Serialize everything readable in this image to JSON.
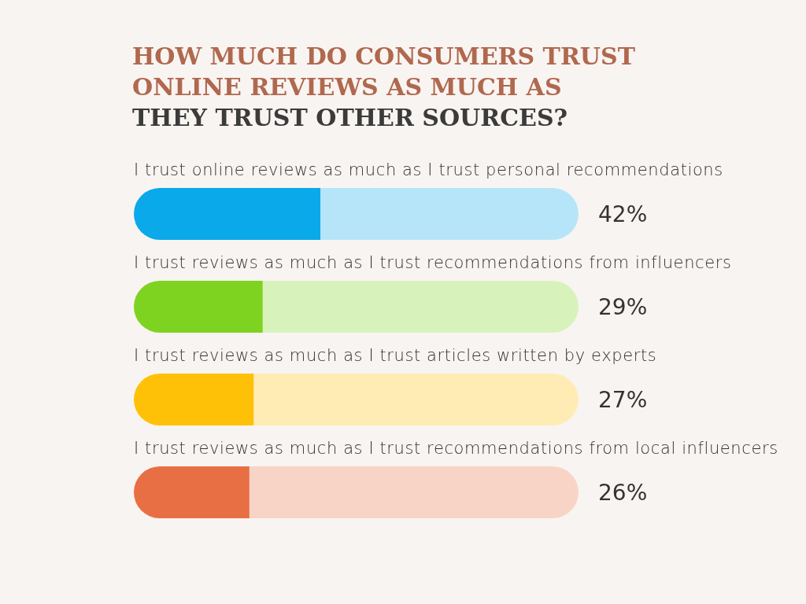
{
  "chart_data": {
    "type": "bar",
    "orientation": "horizontal",
    "stacked": true,
    "title": "HOW MUCH DO CONSUMERS TRUST ONLINE REVIEWS AS MUCH AS",
    "subtitle": "THEY TRUST OTHER SOURCES?",
    "categories": [
      "I trust online reviews as much as I trust personal recommendations",
      "I trust reviews as much as I trust recommendations from influencers",
      "I trust reviews as much as I trust articles written by experts",
      "I trust reviews as much as I trust recommendations from local influencers"
    ],
    "series": [
      {
        "values": [
          42,
          29,
          27,
          26
        ],
        "colors": [
          "#0aa9ea",
          "#7ed321",
          "#ffc107",
          "#e86f44"
        ],
        "value_labels": [
          "42%",
          "29%",
          "27%",
          "26%"
        ]
      },
      {
        "values": [
          58,
          71,
          73,
          74
        ],
        "colors": [
          "#b6e5f9",
          "#d8f2bc",
          "#ffecb5",
          "#f8d4c7"
        ]
      }
    ],
    "xlim": [
      0,
      100
    ],
    "tick_labels": false
  }
}
